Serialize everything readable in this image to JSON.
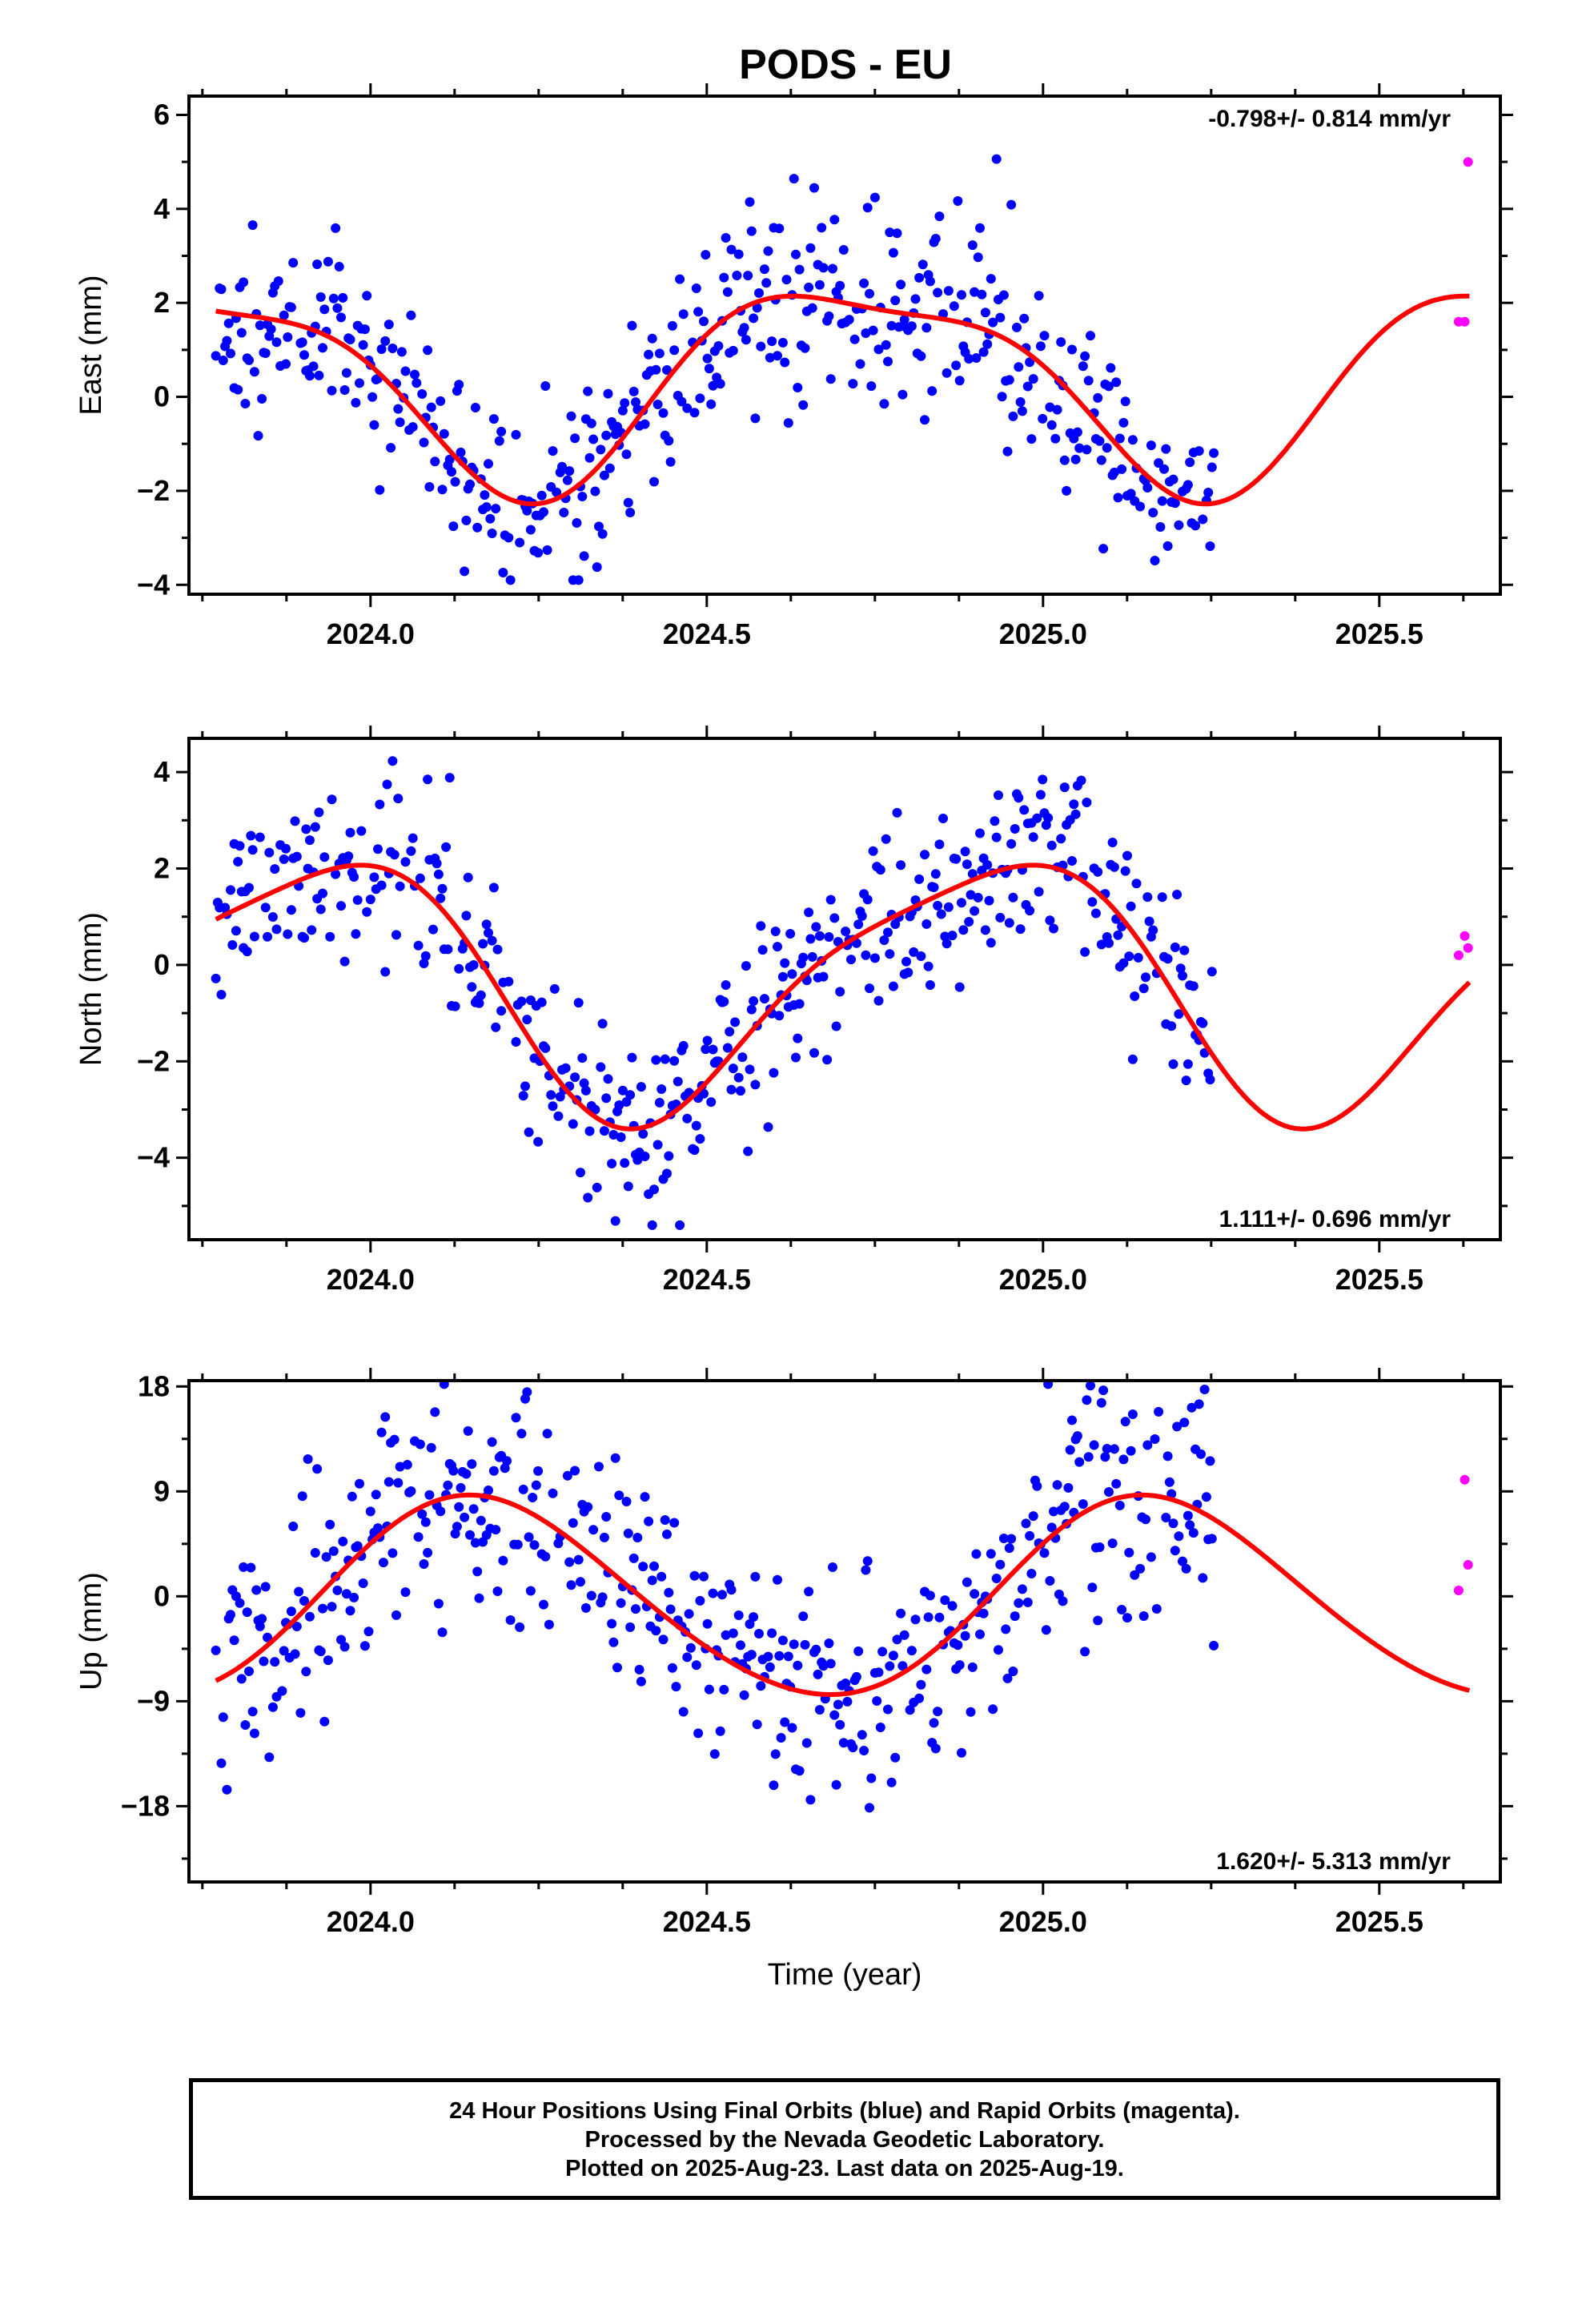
{
  "title": "PODS - EU",
  "footer": {
    "line1": "24 Hour Positions Using Final Orbits (blue) and Rapid Orbits (magenta).",
    "line2": "Processed by the Nevada Geodetic Laboratory.",
    "line3": "Plotted on 2025-Aug-23. Last data on 2025-Aug-19."
  },
  "colors": {
    "final": "#0000ff",
    "rapid": "#ff00ff",
    "model": "#ff0000"
  },
  "chart_data": [
    {
      "type": "scatter",
      "ylabel": "East (mm)",
      "xlabel": "",
      "rate": "-0.798+/- 0.814 mm/yr",
      "rate_position": "top-right",
      "xlim": [
        2023.73,
        2025.68
      ],
      "ylim": [
        -4.2,
        6.4
      ],
      "yticks": [
        -4,
        -2,
        0,
        2,
        4,
        6
      ],
      "ytick_labels": [
        "−4",
        "−2",
        "0",
        "2",
        "4",
        "6"
      ],
      "xticks": [
        2024.0,
        2024.5,
        2025.0,
        2025.5
      ],
      "xtick_labels": [
        "2024.0",
        "2024.5",
        "2025.0",
        "2025.5"
      ],
      "model": {
        "offset": 0.4,
        "amp1": 2.1,
        "phase1": 3.3,
        "amp2": 0.6,
        "phase2": 1.5,
        "x_end": 2025.635
      },
      "noise": 1.0,
      "seed": 11,
      "rapid": [
        {
          "x": 2025.618,
          "y": 1.6
        },
        {
          "x": 2025.627,
          "y": 1.6
        },
        {
          "x": 2025.632,
          "y": 5.0
        }
      ]
    },
    {
      "type": "scatter",
      "ylabel": "North (mm)",
      "xlabel": "",
      "rate": "1.111+/- 0.696 mm/yr",
      "rate_position": "bottom-right",
      "xlim": [
        2023.73,
        2025.68
      ],
      "ylim": [
        -5.7,
        4.7
      ],
      "yticks": [
        -4,
        -2,
        0,
        2,
        4
      ],
      "ytick_labels": [
        "−4",
        "−2",
        "0",
        "2",
        "4"
      ],
      "xticks": [
        2024.0,
        2024.5,
        2025.0,
        2025.5
      ],
      "xtick_labels": [
        "2024.0",
        "2024.5",
        "2025.0",
        "2025.5"
      ],
      "model": {
        "offset": -0.35,
        "amp1": 2.6,
        "phase1": 2.1,
        "amp2": 0.55,
        "phase2": 0.3,
        "x_end": 2025.635
      },
      "noise": 0.95,
      "seed": 23,
      "rapid": [
        {
          "x": 2025.618,
          "y": 0.2
        },
        {
          "x": 2025.627,
          "y": 0.6
        },
        {
          "x": 2025.632,
          "y": 0.35
        }
      ]
    },
    {
      "type": "scatter",
      "ylabel": "Up (mm)",
      "xlabel": "Time (year)",
      "rate": "1.620+/- 5.313 mm/yr",
      "rate_position": "bottom-right",
      "xlim": [
        2023.73,
        2025.68
      ],
      "ylim": [
        -24.5,
        18.5
      ],
      "yticks": [
        -18,
        -9,
        0,
        9,
        18
      ],
      "ytick_labels": [
        "−18",
        "−9",
        "0",
        "9",
        "18"
      ],
      "xticks": [
        2024.0,
        2024.5,
        2025.0,
        2025.5
      ],
      "xtick_labels": [
        "2024.0",
        "2024.5",
        "2025.0",
        "2025.5"
      ],
      "model": {
        "offset": -0.2,
        "amp1": 8.5,
        "phase1": 0.55,
        "amp2": 0.6,
        "phase2": 0.5,
        "x_end": 2025.635
      },
      "noise": 4.8,
      "seed": 37,
      "rapid": [
        {
          "x": 2025.618,
          "y": 0.5
        },
        {
          "x": 2025.627,
          "y": 10.0
        },
        {
          "x": 2025.632,
          "y": 2.7
        }
      ]
    }
  ]
}
